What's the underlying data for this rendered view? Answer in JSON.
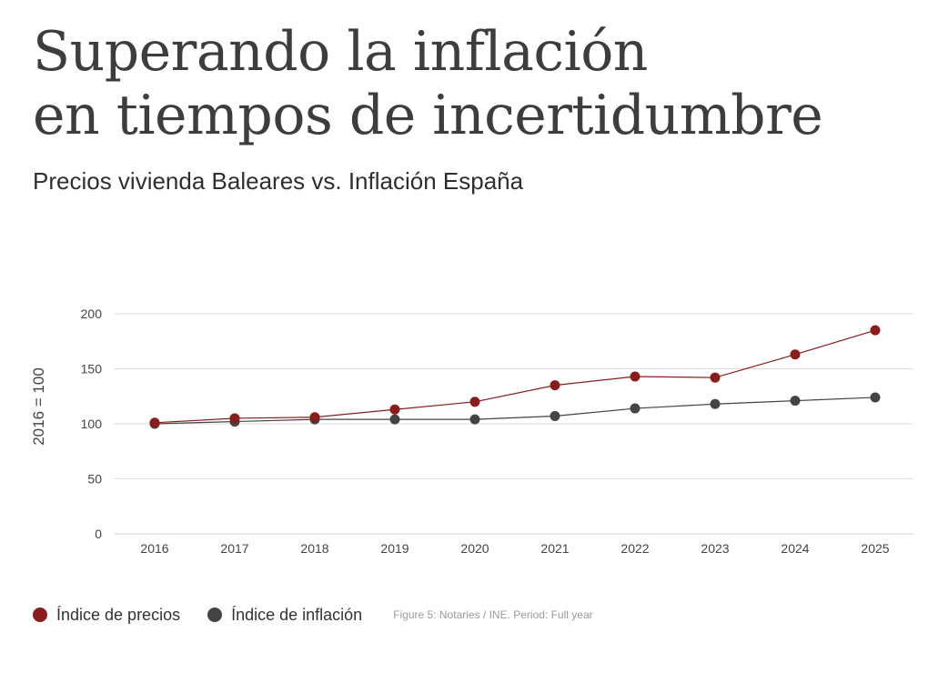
{
  "title_line1": "Superando la inflación",
  "title_line2": "en tiempos de incertidumbre",
  "subtitle": "Precios vivienda Baleares  vs. Inflación España",
  "colors": {
    "precios": "#8b1c1c",
    "inflacion": "#444444",
    "grid": "#dddddd",
    "axis_text": "#444444"
  },
  "legend": {
    "precios_label": "Índice de precios",
    "inflacion_label": "Índice de inflación"
  },
  "source": "Figure 5: Notaries / INE. Period: Full year",
  "chart_data": {
    "type": "line",
    "title": "Precios vivienda Baleares  vs. Inflación España",
    "xlabel": "",
    "ylabel": "2016 = 100",
    "ylim": [
      0,
      200
    ],
    "yticks": [
      "0",
      "50",
      "100",
      "150",
      "200"
    ],
    "grid": true,
    "categories": [
      "2016",
      "2017",
      "2018",
      "2019",
      "2020",
      "2021",
      "2022",
      "2023",
      "2024",
      "2025"
    ],
    "series": [
      {
        "name": "Índice de precios",
        "color": "#8b1c1c",
        "values": [
          101,
          105,
          106,
          113,
          120,
          135,
          143,
          142,
          163,
          185
        ]
      },
      {
        "name": "Índice de inflación",
        "color": "#444444",
        "values": [
          100,
          102,
          104,
          104,
          104,
          107,
          114,
          118,
          121,
          124
        ]
      }
    ]
  }
}
